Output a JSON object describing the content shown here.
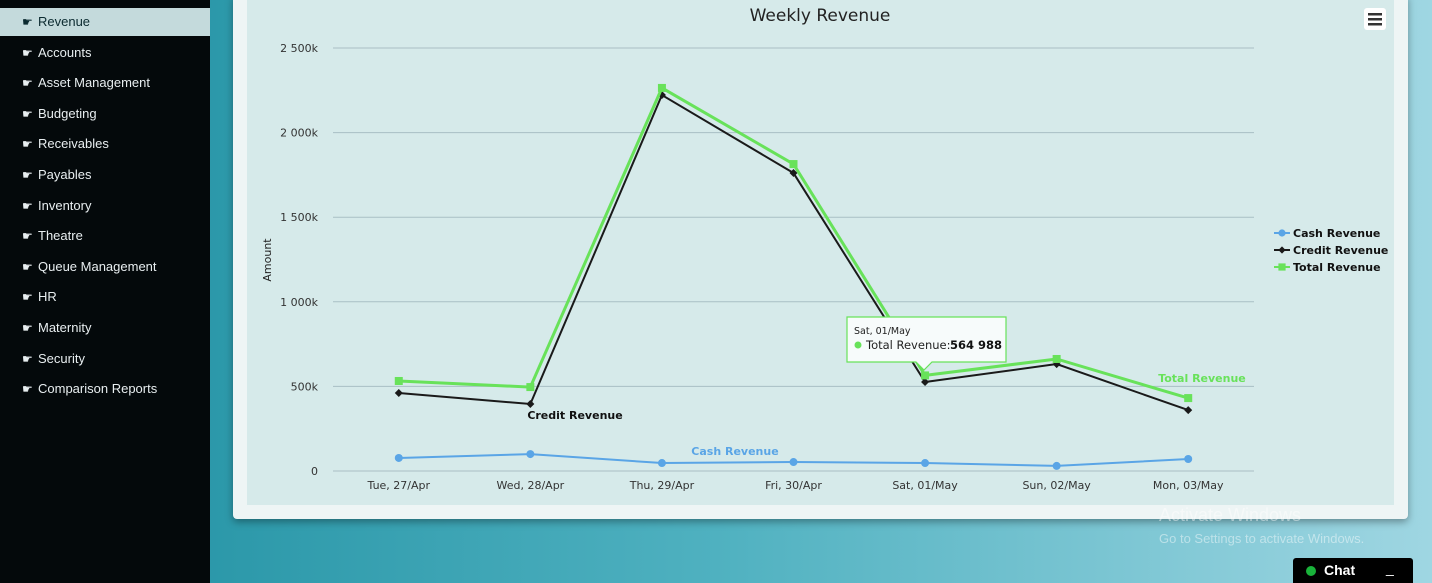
{
  "sidebar": {
    "items": [
      "Revenue",
      "Accounts",
      "Asset Management",
      "Budgeting",
      "Receivables",
      "Payables",
      "Inventory",
      "Theatre",
      "Queue Management",
      "HR",
      "Maternity",
      "Security",
      "Comparison Reports"
    ]
  },
  "chart_data": {
    "type": "line",
    "title": "Weekly Revenue",
    "y_label": "Amount",
    "categories": [
      "Tue, 27/Apr",
      "Wed, 28/Apr",
      "Thu, 29/Apr",
      "Fri, 30/Apr",
      "Sat, 01/May",
      "Sun, 02/May",
      "Mon, 03/May"
    ],
    "series": [
      {
        "name": "Cash Revenue",
        "color": "#5aa5e6",
        "marker": "circle",
        "values": [
          77000,
          100000,
          47000,
          53000,
          47000,
          30000,
          71000
        ]
      },
      {
        "name": "Credit Revenue",
        "color": "#1a1a1a",
        "marker": "diamond",
        "values": [
          461000,
          396000,
          2222000,
          1761000,
          526000,
          632000,
          360000
        ]
      },
      {
        "name": "Total Revenue",
        "color": "#68e25a",
        "marker": "square",
        "values": [
          532000,
          496000,
          2264000,
          1814000,
          564988,
          662000,
          431000
        ]
      }
    ],
    "ylim": [
      0,
      2500000
    ],
    "yticks": [
      {
        "value": 0,
        "label": "0"
      },
      {
        "value": 500000,
        "label": "500k"
      },
      {
        "value": 1000000,
        "label": "1 000k"
      },
      {
        "value": 1500000,
        "label": "1 500k"
      },
      {
        "value": 2000000,
        "label": "2 000k"
      },
      {
        "value": 2500000,
        "label": "2 500k"
      }
    ],
    "grid": true,
    "legend": "right",
    "tooltip": {
      "title": "Sat, 01/May",
      "label": "Total Revenue:",
      "value_label": "564 988"
    }
  },
  "watermark": {
    "title": "Activate Windows",
    "subtitle": "Go to Settings to activate Windows."
  },
  "chat": {
    "label": "Chat",
    "minimize": "_"
  }
}
